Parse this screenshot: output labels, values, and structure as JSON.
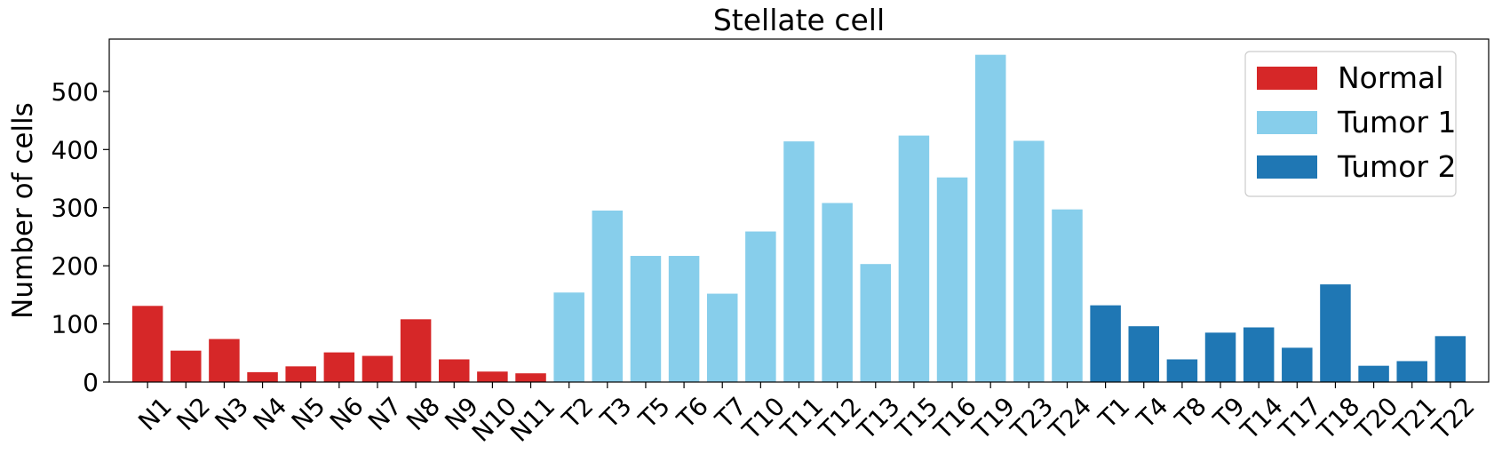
{
  "chart_data": {
    "type": "bar",
    "title": "Stellate cell",
    "xlabel": "",
    "ylabel": "Number of cells",
    "ylim": [
      0,
      590
    ],
    "yticks": [
      0,
      100,
      200,
      300,
      400,
      500
    ],
    "grid": false,
    "legend_position": "top-right",
    "series": [
      {
        "name": "Normal",
        "color": "#d62728",
        "categories": [
          "N1",
          "N2",
          "N3",
          "N4",
          "N5",
          "N6",
          "N7",
          "N8",
          "N9",
          "N10",
          "N11"
        ],
        "values": [
          131,
          54,
          74,
          17,
          27,
          51,
          45,
          108,
          39,
          18,
          15
        ]
      },
      {
        "name": "Tumor 1",
        "color": "#87ceeb",
        "categories": [
          "T2",
          "T3",
          "T5",
          "T6",
          "T7",
          "T10",
          "T11",
          "T12",
          "T13",
          "T15",
          "T16",
          "T19",
          "T23",
          "T24"
        ],
        "values": [
          154,
          295,
          217,
          217,
          152,
          259,
          414,
          308,
          203,
          424,
          352,
          563,
          415,
          297
        ]
      },
      {
        "name": "Tumor 2",
        "color": "#1f77b4",
        "categories": [
          "T1",
          "T4",
          "T8",
          "T9",
          "T14",
          "T17",
          "T18",
          "T20",
          "T21",
          "T22"
        ],
        "values": [
          132,
          96,
          39,
          85,
          94,
          59,
          168,
          28,
          36,
          79
        ]
      }
    ]
  }
}
